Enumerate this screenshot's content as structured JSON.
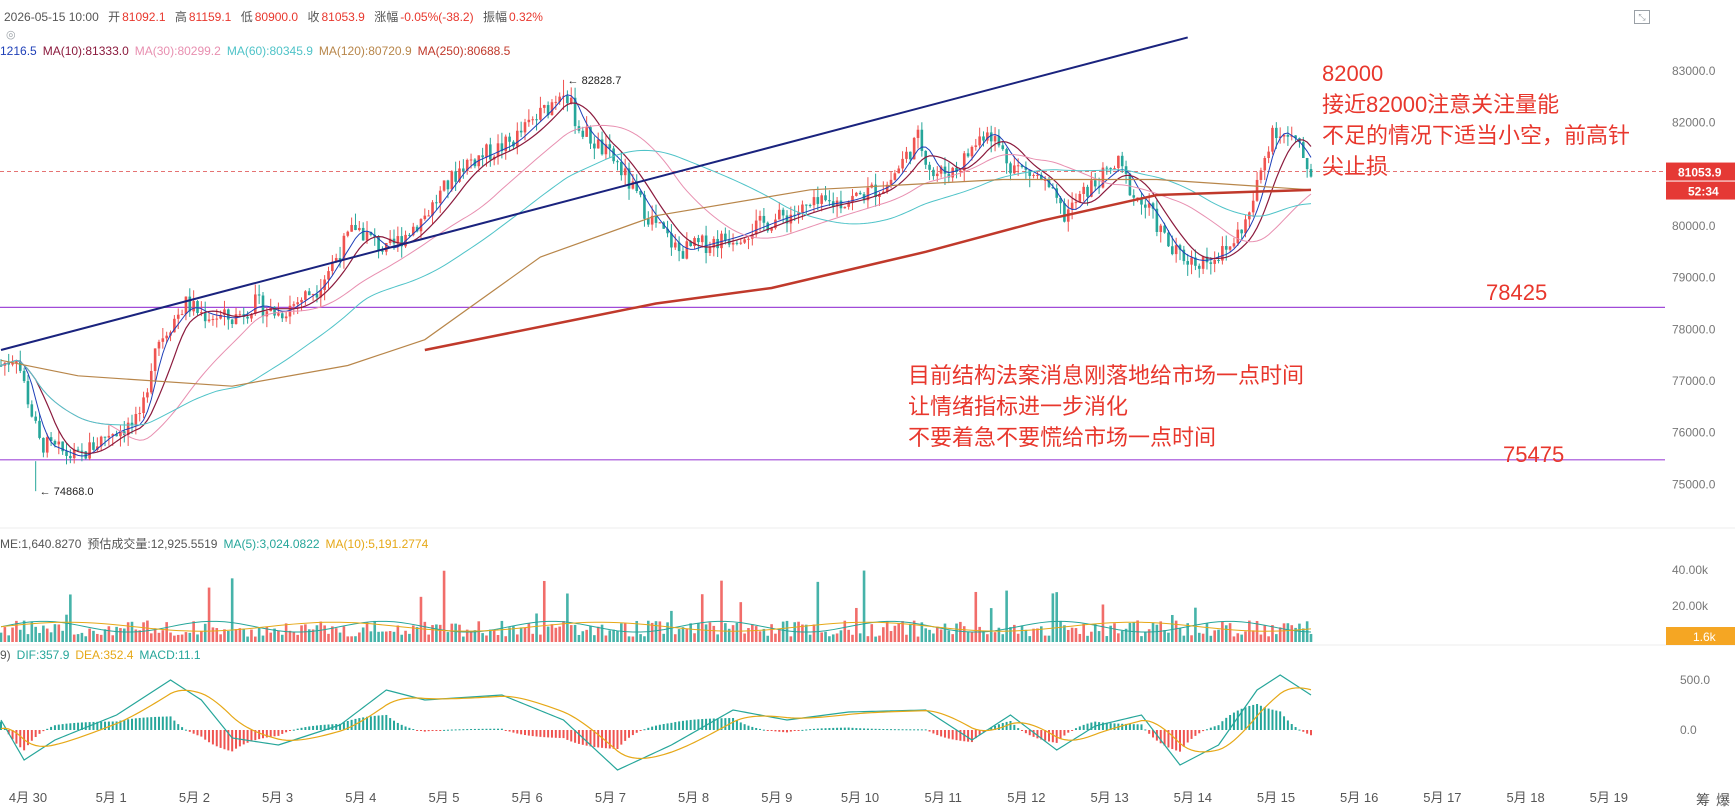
{
  "header": {
    "datetime": "2026-05-15 10:00",
    "open_label": "开",
    "open": "81092.1",
    "high_label": "高",
    "high": "81159.1",
    "low_label": "低",
    "low": "80900.0",
    "close_label": "收",
    "close": "81053.9",
    "change_label": "涨幅",
    "change": "-0.05%(-38.2)",
    "amplitude_label": "振幅",
    "amplitude": "0.32%"
  },
  "ma_legend": [
    {
      "text": "1216.5",
      "color": "#1e3fb8"
    },
    {
      "text": "MA(10):81333.0",
      "color": "#8b1a3d"
    },
    {
      "text": "MA(30):80299.2",
      "color": "#e88fb0"
    },
    {
      "text": "MA(60):80345.9",
      "color": "#4fc3c8"
    },
    {
      "text": "MA(120):80720.9",
      "color": "#b8864a"
    },
    {
      "text": "MA(250):80688.5",
      "color": "#c0392b"
    }
  ],
  "vol_legend": [
    {
      "text": "ME:1,640.8270",
      "color": "#555555"
    },
    {
      "text": "预估成交量:12,925.5519",
      "color": "#555555"
    },
    {
      "text": "MA(5):3,024.0822",
      "color": "#26a69a"
    },
    {
      "text": "MA(10):5,191.2774",
      "color": "#e6a817"
    }
  ],
  "macd_legend": [
    {
      "text": "9)",
      "color": "#555555"
    },
    {
      "text": "DIF:357.9",
      "color": "#26a69a"
    },
    {
      "text": "DEA:352.4",
      "color": "#e6a817"
    },
    {
      "text": "MACD:11.1",
      "color": "#26a69a"
    }
  ],
  "annotations": {
    "right": [
      "82000",
      "接近82000注意关注量能",
      "不足的情况下适当小空，前高针",
      "尖止损"
    ],
    "center": [
      "目前结构法案消息刚落地给市场一点时间",
      "让情绪指标进一步消化",
      "不要着急不要慌给市场一点时间"
    ],
    "level_high": "78425",
    "level_low": "75475"
  },
  "price_badge": "81053.9",
  "countdown_badge": "52:34",
  "volume_badge": "1.6k",
  "footer_chars": [
    "筹",
    "爆"
  ],
  "colors": {
    "up": "#ef5350",
    "down": "#26a69a",
    "trend": "#1a237e",
    "level": "#a04ad8",
    "accent": "#e8372d"
  },
  "chart_data": {
    "type": "candlestick",
    "interval": "1h",
    "price_ylim": [
      74600,
      83600
    ],
    "price_ticks": [
      75000,
      76000,
      77000,
      78000,
      79000,
      80000,
      81000,
      82000,
      83000
    ],
    "price_tick_labels": [
      "75000.0",
      "76000.0",
      "77000.0",
      "78000.0",
      "79000.0",
      "80000.0",
      "81000.0",
      "82000.0",
      "83000.0"
    ],
    "x_ticks": [
      "4月 30",
      "5月 1",
      "5月 2",
      "5月 3",
      "5月 4",
      "5月 5",
      "5月 6",
      "5月 7",
      "5月 8",
      "5月 9",
      "5月 10",
      "5月 11",
      "5月 12",
      "5月 13",
      "5月 14",
      "5月 15",
      "5月 16",
      "5月 17",
      "5月 18",
      "5月 19"
    ],
    "price_path": [
      [
        0,
        77300
      ],
      [
        4,
        77500
      ],
      [
        10,
        75800
      ],
      [
        20,
        75500
      ],
      [
        28,
        76000
      ],
      [
        36,
        76200
      ],
      [
        40,
        77700
      ],
      [
        48,
        78500
      ],
      [
        52,
        78300
      ],
      [
        60,
        78200
      ],
      [
        66,
        78500
      ],
      [
        72,
        78300
      ],
      [
        82,
        78800
      ],
      [
        92,
        80000
      ],
      [
        100,
        79500
      ],
      [
        110,
        80200
      ],
      [
        120,
        81200
      ],
      [
        132,
        81600
      ],
      [
        142,
        82300
      ],
      [
        146,
        82700
      ],
      [
        150,
        81900
      ],
      [
        160,
        81200
      ],
      [
        168,
        80200
      ],
      [
        176,
        79500
      ],
      [
        180,
        79600
      ],
      [
        190,
        79800
      ],
      [
        200,
        80100
      ],
      [
        212,
        80400
      ],
      [
        220,
        80500
      ],
      [
        230,
        80800
      ],
      [
        238,
        81700
      ],
      [
        242,
        81000
      ],
      [
        248,
        81100
      ],
      [
        256,
        81900
      ],
      [
        262,
        81200
      ],
      [
        270,
        80900
      ],
      [
        276,
        80200
      ],
      [
        282,
        80700
      ],
      [
        290,
        81200
      ],
      [
        294,
        80600
      ],
      [
        298,
        80300
      ],
      [
        304,
        79500
      ],
      [
        310,
        79300
      ],
      [
        318,
        79500
      ],
      [
        324,
        80200
      ],
      [
        330,
        81900
      ],
      [
        336,
        81600
      ],
      [
        340,
        81054
      ]
    ],
    "marked_high": {
      "i": 146,
      "value": 82828.7,
      "label": "82828.7"
    },
    "marked_low": {
      "i": 9,
      "value": 74868.0,
      "label": "74868.0"
    },
    "levels": [
      78425,
      75475
    ],
    "last_price": 81053.9,
    "trendline": {
      "start": [
        0,
        77600
      ],
      "end": [
        308,
        83650
      ]
    },
    "ma250_path": [
      [
        110,
        77600
      ],
      [
        150,
        78200
      ],
      [
        170,
        78500
      ],
      [
        200,
        78800
      ],
      [
        240,
        79500
      ],
      [
        270,
        80100
      ],
      [
        300,
        80600
      ],
      [
        340,
        80700
      ]
    ],
    "ma120_path": [
      [
        0,
        77400
      ],
      [
        20,
        77100
      ],
      [
        60,
        76900
      ],
      [
        90,
        77300
      ],
      [
        110,
        77800
      ],
      [
        140,
        79400
      ],
      [
        170,
        80200
      ],
      [
        210,
        80700
      ],
      [
        260,
        80900
      ],
      [
        300,
        80900
      ],
      [
        340,
        80700
      ]
    ],
    "volume_ticks": [
      20000,
      40000
    ],
    "volume_tick_labels": [
      "20.00k",
      "40.00k"
    ],
    "volume_ylim": [
      0,
      50000
    ],
    "macd_ticks": [
      0,
      500
    ],
    "macd_tick_labels": [
      "0.0",
      "500.0"
    ],
    "macd_ylim": [
      -600,
      700
    ],
    "macd_path": [
      [
        0,
        100
      ],
      [
        6,
        -300
      ],
      [
        14,
        -100
      ],
      [
        30,
        150
      ],
      [
        44,
        500
      ],
      [
        52,
        300
      ],
      [
        60,
        -80
      ],
      [
        72,
        -150
      ],
      [
        88,
        50
      ],
      [
        100,
        400
      ],
      [
        110,
        300
      ],
      [
        130,
        350
      ],
      [
        146,
        100
      ],
      [
        160,
        -400
      ],
      [
        174,
        -150
      ],
      [
        190,
        200
      ],
      [
        204,
        100
      ],
      [
        220,
        180
      ],
      [
        240,
        200
      ],
      [
        252,
        -100
      ],
      [
        262,
        150
      ],
      [
        274,
        -200
      ],
      [
        284,
        40
      ],
      [
        296,
        150
      ],
      [
        306,
        -350
      ],
      [
        316,
        -150
      ],
      [
        326,
        400
      ],
      [
        332,
        550
      ],
      [
        340,
        350
      ]
    ]
  }
}
